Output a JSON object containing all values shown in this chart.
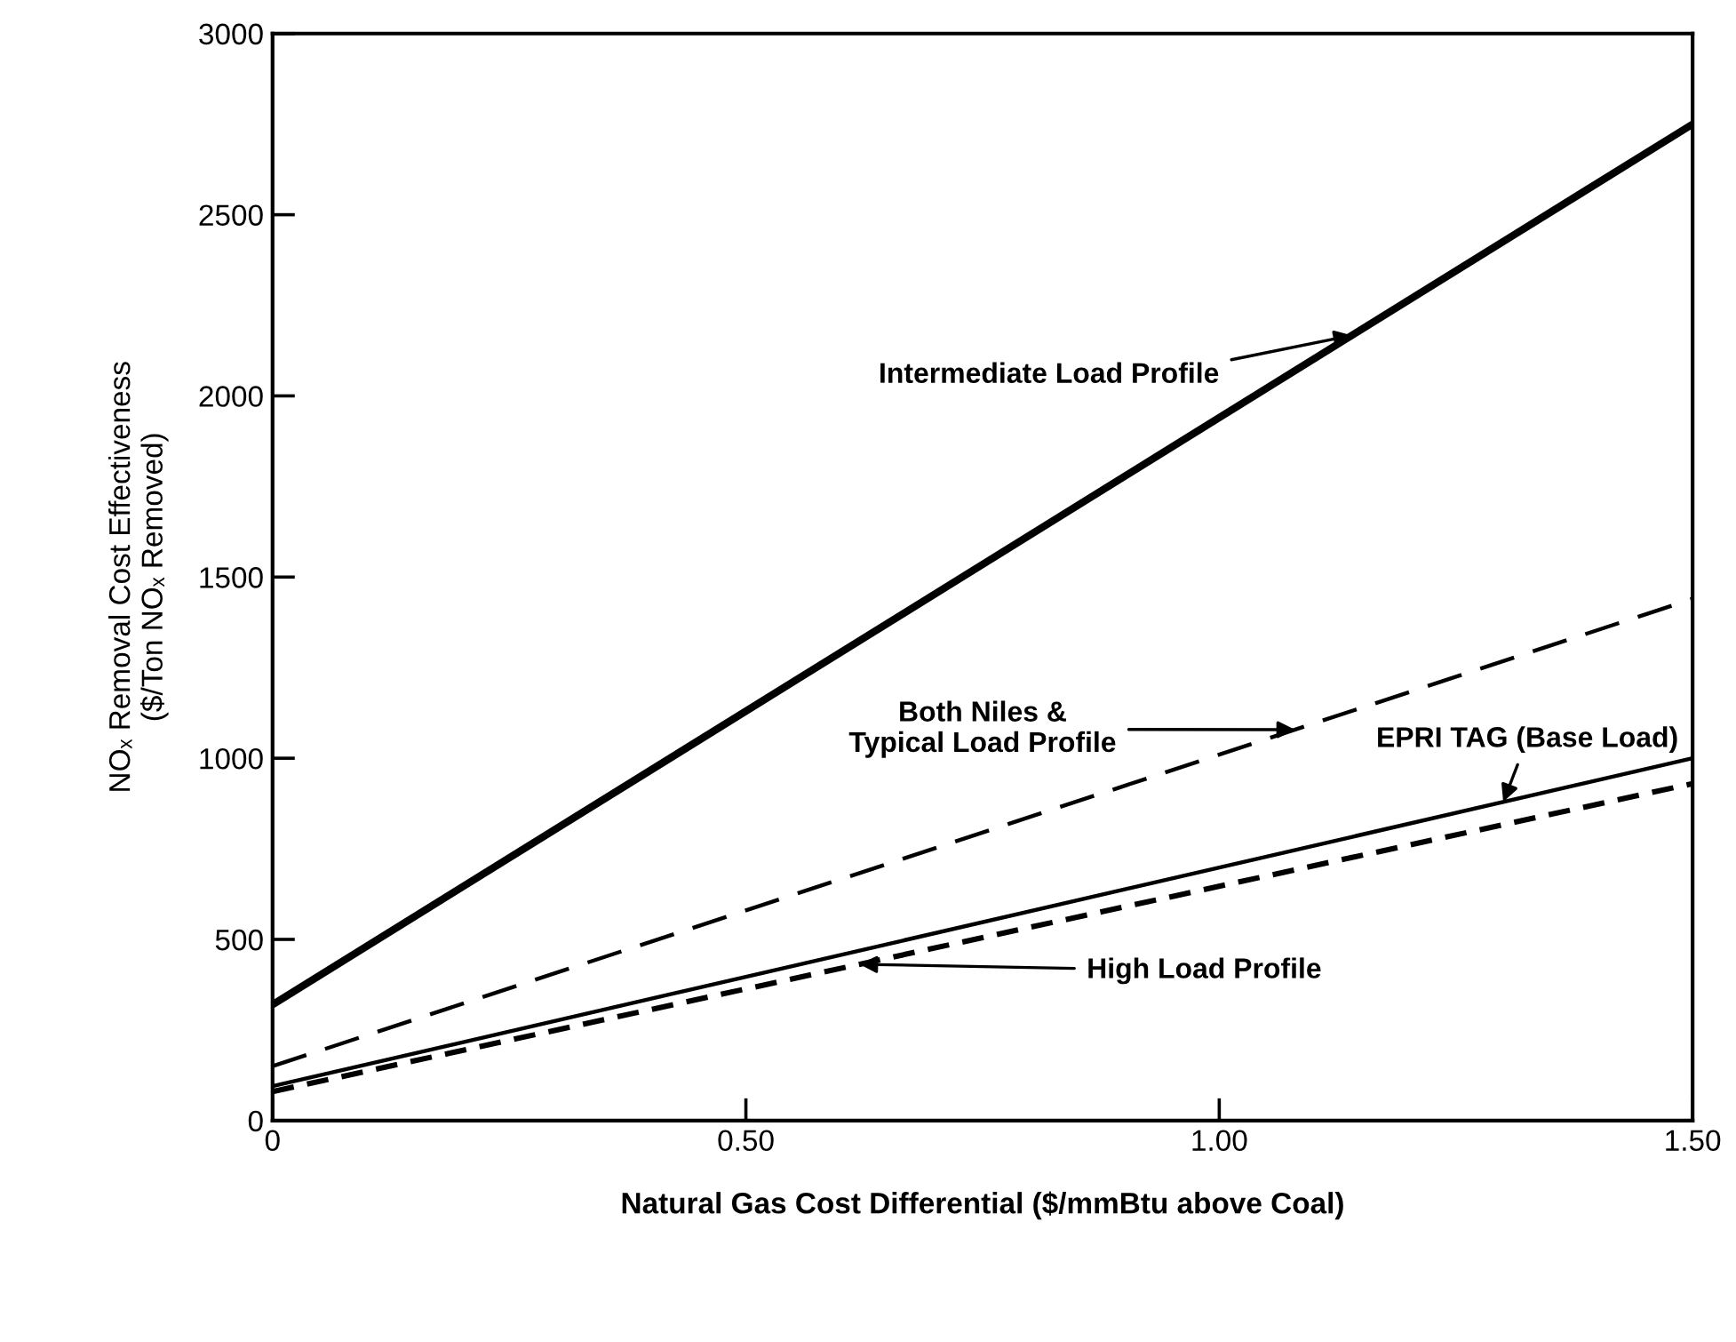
{
  "chart_data": {
    "type": "line",
    "xlabel": "Natural Gas Cost Differential ($/mmBtu above Coal)",
    "ylabel": "NOₓ Removal Cost Effectiveness\n($/Ton NOₓ Removed)",
    "x": [
      0,
      1.5
    ],
    "series": [
      {
        "name": "Intermediate Load Profile",
        "color": "#000000",
        "values": [
          320,
          2750
        ],
        "line_style": "solid"
      },
      {
        "name": "Both Niles &\nTypical Load Profile",
        "color": "#000000",
        "values": [
          150,
          1440
        ],
        "line_style": "dashed"
      },
      {
        "name": "EPRI TAG (Base Load)",
        "color": "#000000",
        "values": [
          95,
          1000
        ],
        "line_style": "solid"
      },
      {
        "name": "High Load Profile",
        "color": "#000000",
        "values": [
          80,
          930
        ],
        "line_style": "dashed"
      }
    ],
    "xlim": [
      0,
      1.5
    ],
    "ylim": [
      0,
      3000
    ],
    "xticks": [
      0,
      {
        "value": 0.5,
        "label": "0.50"
      },
      {
        "value": 1.0,
        "label": "1.00"
      },
      {
        "value": 1.5,
        "label": "1.50"
      }
    ],
    "yticks": [
      0,
      500,
      1000,
      1500,
      2000,
      2500,
      3000
    ],
    "grid": false,
    "legend": false,
    "marker": "none"
  }
}
